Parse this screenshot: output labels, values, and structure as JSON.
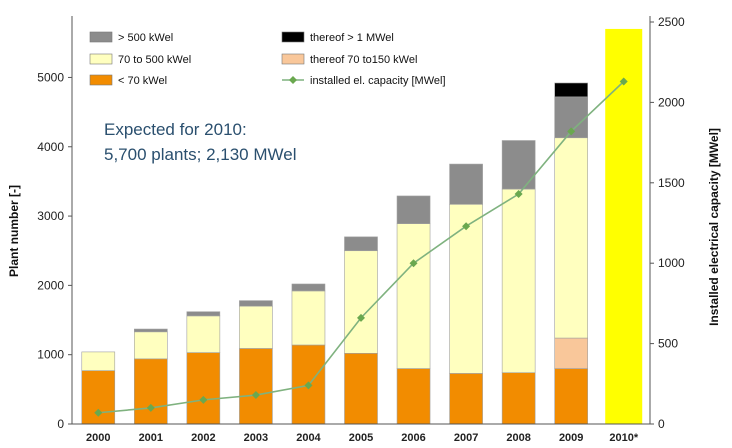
{
  "chart_data": {
    "type": "bar",
    "stacked": true,
    "categories": [
      "2000",
      "2001",
      "2002",
      "2003",
      "2004",
      "2005",
      "2006",
      "2007",
      "2008",
      "2009",
      "2010*"
    ],
    "series": [
      {
        "name": "< 70 kWel",
        "axis": "left",
        "color": "#f28c00",
        "values": [
          770,
          940,
          1030,
          1090,
          1140,
          1020,
          800,
          730,
          740,
          800,
          0
        ]
      },
      {
        "name": "thereof 70 to150 kWel",
        "axis": "left",
        "color": "#f9c79a",
        "values": [
          0,
          0,
          0,
          0,
          0,
          0,
          0,
          0,
          0,
          440,
          0
        ]
      },
      {
        "name": "70 to 500 kWel",
        "axis": "left",
        "color": "#ffffbf",
        "values": [
          270,
          390,
          530,
          610,
          780,
          1480,
          2090,
          2440,
          2650,
          2890,
          0
        ]
      },
      {
        "name": "> 500 kWel",
        "axis": "left",
        "color": "#8c8c8c",
        "values": [
          0,
          40,
          60,
          80,
          100,
          200,
          400,
          580,
          700,
          590,
          0
        ]
      },
      {
        "name": "thereof > 1 MWel",
        "axis": "left",
        "color": "#000000",
        "values": [
          0,
          0,
          0,
          0,
          0,
          0,
          0,
          0,
          0,
          200,
          0
        ]
      }
    ],
    "total_bar_2010": {
      "category": "2010*",
      "value": 5700,
      "color": "#ffff00"
    },
    "line": {
      "name": "installed el. capacity [MWel]",
      "axis": "right",
      "color": "#7fb27f",
      "marker_color": "#6aa84f",
      "categories": [
        "2000",
        "2001",
        "2002",
        "2003",
        "2004",
        "2005",
        "2006",
        "2007",
        "2008",
        "2009",
        "2010*"
      ],
      "values": [
        70,
        100,
        150,
        180,
        240,
        660,
        1000,
        1230,
        1430,
        1820,
        2130
      ]
    },
    "left_axis": {
      "label": "Plant number [-]",
      "min": 0,
      "max": 5800,
      "ticks": [
        0,
        1000,
        2000,
        3000,
        4000,
        5000
      ]
    },
    "right_axis": {
      "label": "Installed electrical capacity  [MWel]",
      "min": 0,
      "max": 2500,
      "ticks": [
        0,
        500,
        1000,
        1500,
        2000,
        2500
      ]
    },
    "annotation": [
      "Expected for 2010:",
      "5,700 plants; 2,130 MWel"
    ],
    "legend_placement": "top-left",
    "legend_order": [
      "> 500 kWel",
      "thereof > 1 MWel",
      "70 to 500 kWel",
      "thereof 70 to150 kWel",
      "< 70 kWel",
      "installed el. capacity [MWel]"
    ],
    "grid": false
  }
}
